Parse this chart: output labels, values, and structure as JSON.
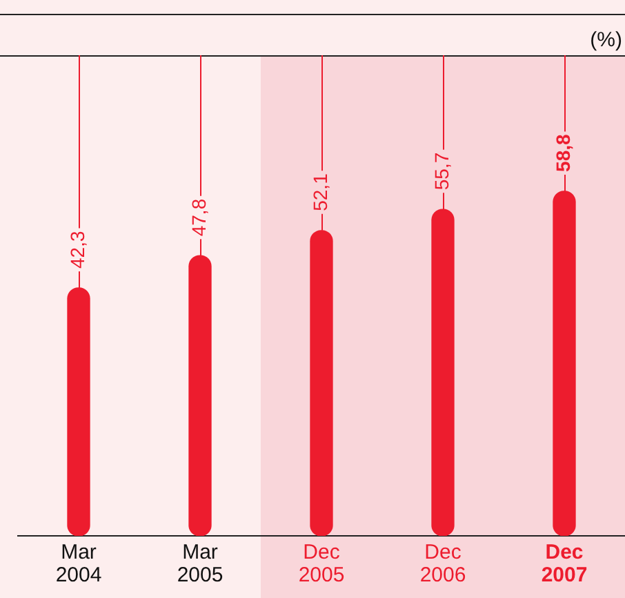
{
  "chart_data": {
    "type": "bar",
    "ylabel": "(%)",
    "categories": [
      "Mar 2004",
      "Mar 2005",
      "Dec 2005",
      "Dec 2006",
      "Dec 2007"
    ],
    "values": [
      42.3,
      47.8,
      52.1,
      55.7,
      58.8
    ],
    "color": "#ed1c2e",
    "value_labels": [
      "42,3",
      "47,8",
      "52,1",
      "55,7",
      "58,8"
    ],
    "ylim": [
      0,
      82
    ],
    "bands": [
      {
        "axis": "x",
        "from": "Dec 2005",
        "to": "Dec 2007",
        "color": "#f9d6da"
      }
    ],
    "grid": false,
    "legend": false
  }
}
